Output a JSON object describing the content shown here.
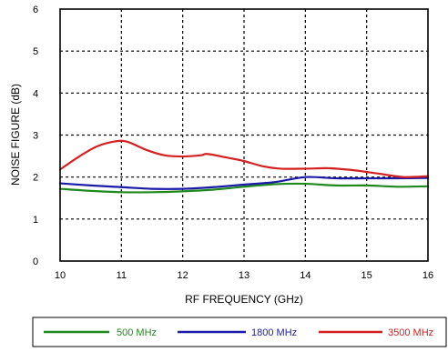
{
  "chart_data": {
    "type": "line",
    "xlabel": "RF FREQUENCY (GHz)",
    "ylabel": "NOISE FIGURE (dB)",
    "xlim": [
      10,
      16
    ],
    "ylim": [
      0,
      6
    ],
    "xticks": [
      10,
      11,
      12,
      13,
      14,
      15,
      16
    ],
    "yticks": [
      0,
      1,
      2,
      3,
      4,
      5,
      6
    ],
    "grid": true,
    "legend_position": "bottom",
    "series": [
      {
        "name": "500 MHz",
        "color": "#1e8a1e",
        "x": [
          10,
          10.5,
          11,
          11.5,
          12,
          12.5,
          13,
          13.5,
          14,
          14.5,
          15,
          15.5,
          16
        ],
        "y": [
          1.72,
          1.67,
          1.64,
          1.64,
          1.66,
          1.7,
          1.77,
          1.83,
          1.84,
          1.8,
          1.8,
          1.77,
          1.78
        ]
      },
      {
        "name": "1800 MHz",
        "color": "#1a1aa8",
        "x": [
          10,
          10.5,
          11,
          11.5,
          12,
          12.5,
          13,
          13.5,
          14,
          14.5,
          15,
          15.5,
          16
        ],
        "y": [
          1.85,
          1.8,
          1.76,
          1.72,
          1.72,
          1.76,
          1.82,
          1.88,
          2.0,
          1.97,
          1.97,
          1.97,
          1.98
        ]
      },
      {
        "name": "3500 MHz",
        "color": "#d42020",
        "x": [
          10,
          10.3,
          10.6,
          10.9,
          11.1,
          11.4,
          11.7,
          12.0,
          12.3,
          12.4,
          12.7,
          13.0,
          13.3,
          13.6,
          14.0,
          14.4,
          14.8,
          15.2,
          15.6,
          16
        ],
        "y": [
          2.18,
          2.48,
          2.73,
          2.85,
          2.84,
          2.65,
          2.52,
          2.49,
          2.52,
          2.55,
          2.47,
          2.38,
          2.26,
          2.2,
          2.2,
          2.21,
          2.16,
          2.08,
          2.0,
          2.02
        ]
      }
    ]
  }
}
